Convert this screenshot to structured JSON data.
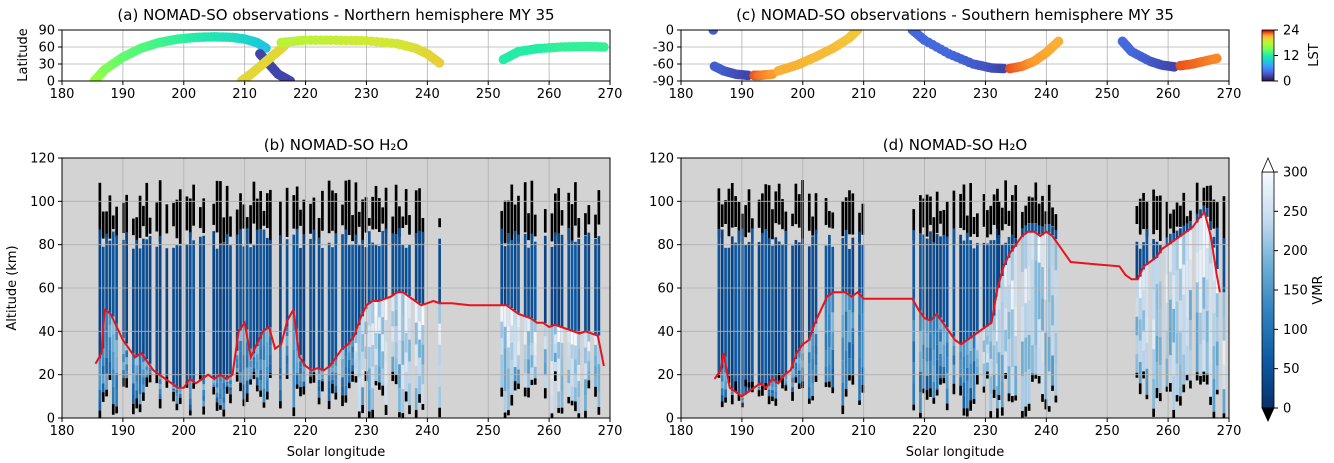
{
  "figure": {
    "x_label": "Solar longitude",
    "lst_colorbar": {
      "label": "LST",
      "ticks": [
        0,
        12,
        24
      ]
    },
    "vmr_colorbar": {
      "label": "VMR",
      "ticks": [
        0,
        50,
        100,
        150,
        200,
        250,
        300
      ]
    }
  },
  "chart_data": [
    {
      "id": "a",
      "type": "scatter",
      "title": "(a) NOMAD-SO observations - Northern hemisphere MY 35",
      "xlabel": "",
      "ylabel": "Latitude",
      "xlim": [
        180,
        270
      ],
      "ylim": [
        0,
        90
      ],
      "xticks": [
        180,
        190,
        200,
        210,
        220,
        230,
        240,
        250,
        260,
        270
      ],
      "yticks": [
        0,
        30,
        60,
        90
      ],
      "grid": true,
      "color_variable": "LST",
      "tracks": [
        {
          "x": [
            185.3,
            187,
            190,
            193,
            196,
            199,
            202,
            205,
            208,
            210,
            212,
            213.5
          ],
          "y": [
            0,
            20,
            42,
            58,
            68,
            74,
            77,
            78,
            77,
            74,
            68,
            58
          ],
          "lst": [
            14,
            13,
            12,
            11.5,
            11,
            10.5,
            10,
            9.5,
            9,
            8.5,
            8,
            7.5
          ]
        },
        {
          "x": [
            212.5,
            214,
            215.5,
            217.5
          ],
          "y": [
            48,
            30,
            12,
            0
          ],
          "lst": [
            2,
            2,
            2,
            2
          ]
        },
        {
          "x": [
            209.5,
            211,
            213,
            215,
            216.5
          ],
          "y": [
            0,
            12,
            30,
            48,
            62
          ],
          "lst": [
            17,
            17,
            17,
            17,
            17
          ]
        },
        {
          "x": [
            216,
            220,
            225,
            230,
            235,
            238,
            240,
            242
          ],
          "y": [
            68,
            72,
            72,
            71,
            66,
            58,
            48,
            32
          ],
          "lst": [
            15,
            15,
            15.5,
            16,
            16,
            16.5,
            17,
            17.5
          ]
        },
        {
          "x": [
            252.5,
            255,
            258,
            262,
            266,
            269
          ],
          "y": [
            38,
            52,
            57,
            60,
            61,
            60
          ],
          "lst": [
            10,
            10,
            10,
            10.5,
            10.5,
            10.5
          ]
        }
      ]
    },
    {
      "id": "b",
      "type": "heatmap",
      "title": "(b) NOMAD-SO H₂O",
      "xlabel": "Solar longitude",
      "ylabel": "Altitude (km)",
      "xlim": [
        180,
        270
      ],
      "ylim": [
        0,
        120
      ],
      "xticks": [
        180,
        190,
        200,
        210,
        220,
        230,
        240,
        250,
        260,
        270
      ],
      "yticks": [
        0,
        20,
        40,
        60,
        80,
        100,
        120
      ],
      "grid": true,
      "colorbar": "VMR",
      "vmr_range": [
        0,
        300
      ],
      "observation_windows": [
        [
          186,
          214
        ],
        [
          214,
          222
        ],
        [
          222,
          242
        ],
        [
          252,
          269
        ]
      ],
      "red_line": {
        "x": [
          185.5,
          186.5,
          187,
          188,
          189,
          190,
          191,
          192,
          193,
          194,
          195,
          196,
          197,
          198,
          199,
          200,
          201,
          202,
          203,
          204,
          205,
          206,
          207,
          208,
          209,
          210,
          211,
          212,
          213,
          214,
          215,
          216,
          217,
          218,
          219,
          220,
          221,
          222,
          223,
          224,
          225,
          226,
          227,
          228,
          229,
          230,
          231,
          232,
          233,
          234,
          235,
          236,
          237,
          238,
          239,
          240,
          241,
          242,
          244,
          247,
          250,
          252,
          253,
          254,
          255,
          256,
          257,
          258,
          259,
          260,
          261,
          262,
          263,
          264,
          265,
          266,
          267,
          268,
          269
        ],
        "y": [
          25,
          30,
          50,
          48,
          42,
          36,
          32,
          28,
          30,
          26,
          22,
          20,
          18,
          16,
          14,
          14,
          18,
          16,
          18,
          20,
          18,
          20,
          18,
          20,
          40,
          44,
          28,
          34,
          40,
          42,
          32,
          34,
          45,
          50,
          28,
          24,
          22,
          23,
          22,
          24,
          28,
          32,
          34,
          38,
          46,
          52,
          54,
          54,
          55,
          56,
          58,
          58,
          56,
          54,
          52,
          53,
          54,
          53,
          53,
          52,
          52,
          52,
          52,
          50,
          48,
          47,
          46,
          44,
          44,
          42,
          43,
          42,
          41,
          40,
          39,
          40,
          39,
          38,
          24
        ]
      }
    },
    {
      "id": "c",
      "type": "scatter",
      "title": "(c) NOMAD-SO observations - Southern hemisphere MY 35",
      "xlabel": "",
      "ylabel": "",
      "xlim": [
        180,
        270
      ],
      "ylim": [
        -90,
        0
      ],
      "xticks": [
        180,
        190,
        200,
        210,
        220,
        230,
        240,
        250,
        260,
        270
      ],
      "yticks": [
        -90,
        -60,
        -30,
        0
      ],
      "grid": true,
      "color_variable": "LST",
      "tracks": [
        {
          "x": [
            185.3
          ],
          "y": [
            0
          ],
          "lst": [
            3
          ]
        },
        {
          "x": [
            185.5,
            187,
            189,
            191
          ],
          "y": [
            -64,
            -72,
            -78,
            -80
          ],
          "lst": [
            3,
            3,
            2.5,
            2
          ]
        },
        {
          "x": [
            192,
            193,
            195
          ],
          "y": [
            -80,
            -80,
            -78
          ],
          "lst": [
            22,
            21,
            20
          ]
        },
        {
          "x": [
            196,
            199,
            202,
            205,
            207.5,
            209
          ],
          "y": [
            -72,
            -62,
            -48,
            -32,
            -15,
            0
          ],
          "lst": [
            19,
            19,
            18.5,
            18.5,
            18,
            18
          ]
        },
        {
          "x": [
            218,
            220,
            224,
            228,
            231,
            233
          ],
          "y": [
            0,
            -18,
            -42,
            -60,
            -67,
            -68
          ],
          "lst": [
            3.5,
            3.5,
            3.5,
            3,
            2.5,
            2
          ]
        },
        {
          "x": [
            234,
            236,
            238,
            240,
            242
          ],
          "y": [
            -68,
            -64,
            -55,
            -40,
            -20
          ],
          "lst": [
            22,
            21,
            20,
            19.5,
            19
          ]
        },
        {
          "x": [
            252.5,
            254,
            257,
            259,
            261
          ],
          "y": [
            -20,
            -38,
            -55,
            -62,
            -65
          ],
          "lst": [
            3.5,
            3.5,
            3,
            2.5,
            2
          ]
        },
        {
          "x": [
            262,
            264,
            266,
            268
          ],
          "y": [
            -63,
            -60,
            -55,
            -50
          ],
          "lst": [
            22,
            21.5,
            21,
            20.5
          ]
        }
      ]
    },
    {
      "id": "d",
      "type": "heatmap",
      "title": "(d) NOMAD-SO H₂O",
      "xlabel": "Solar longitude",
      "ylabel": "",
      "xlim": [
        180,
        270
      ],
      "ylim": [
        0,
        120
      ],
      "xticks": [
        180,
        190,
        200,
        210,
        220,
        230,
        240,
        250,
        260,
        270
      ],
      "yticks": [
        0,
        20,
        40,
        60,
        80,
        100,
        120
      ],
      "grid": true,
      "colorbar": "VMR",
      "vmr_range": [
        0,
        300
      ],
      "observation_windows": [
        [
          186,
          210
        ],
        [
          218,
          232
        ],
        [
          232,
          242
        ],
        [
          253,
          269
        ]
      ],
      "red_line": {
        "x": [
          185.5,
          186.5,
          187,
          188,
          189,
          190,
          191,
          192,
          193,
          194,
          195,
          196,
          197,
          198,
          199,
          200,
          201,
          202,
          203,
          204,
          205,
          206,
          207,
          208,
          209,
          210,
          212,
          215,
          218,
          219,
          220,
          221,
          222,
          223,
          224,
          225,
          226,
          227,
          228,
          229,
          230,
          231,
          232,
          233,
          234,
          235,
          236,
          237,
          238,
          239,
          240,
          241,
          242,
          244,
          248,
          252,
          253,
          254,
          255,
          256,
          257,
          258,
          259,
          260,
          261,
          262,
          263,
          264,
          265,
          266,
          267,
          268,
          268.5
        ],
        "y": [
          18,
          22,
          30,
          14,
          12,
          10,
          12,
          14,
          16,
          14,
          18,
          16,
          20,
          22,
          30,
          34,
          36,
          44,
          50,
          56,
          58,
          58,
          58,
          56,
          58,
          55,
          55,
          55,
          55,
          50,
          46,
          45,
          48,
          44,
          40,
          36,
          34,
          36,
          38,
          40,
          42,
          44,
          60,
          70,
          76,
          80,
          84,
          86,
          86,
          84,
          86,
          84,
          80,
          72,
          71,
          70,
          66,
          64,
          64,
          70,
          72,
          74,
          78,
          80,
          82,
          84,
          86,
          88,
          92,
          95,
          84,
          66,
          58
        ]
      }
    }
  ]
}
